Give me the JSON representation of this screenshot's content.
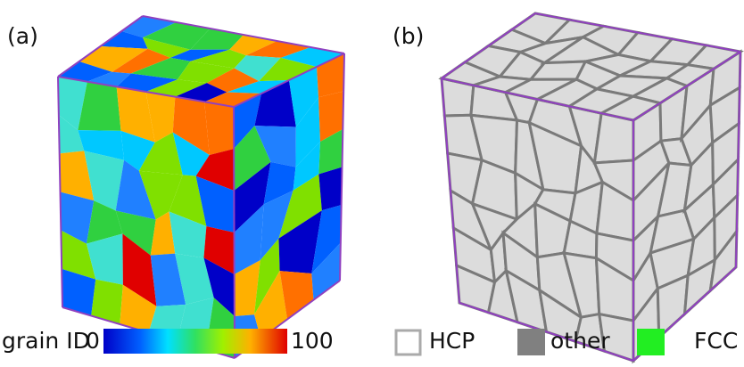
{
  "panels": [
    {
      "label": "(a)"
    },
    {
      "label": "(b)"
    }
  ],
  "colorbar": {
    "label": "grain ID",
    "min": 0,
    "max": 100
  },
  "legend": [
    {
      "name": "HCP"
    },
    {
      "name": "other"
    },
    {
      "name": "FCC"
    }
  ]
}
